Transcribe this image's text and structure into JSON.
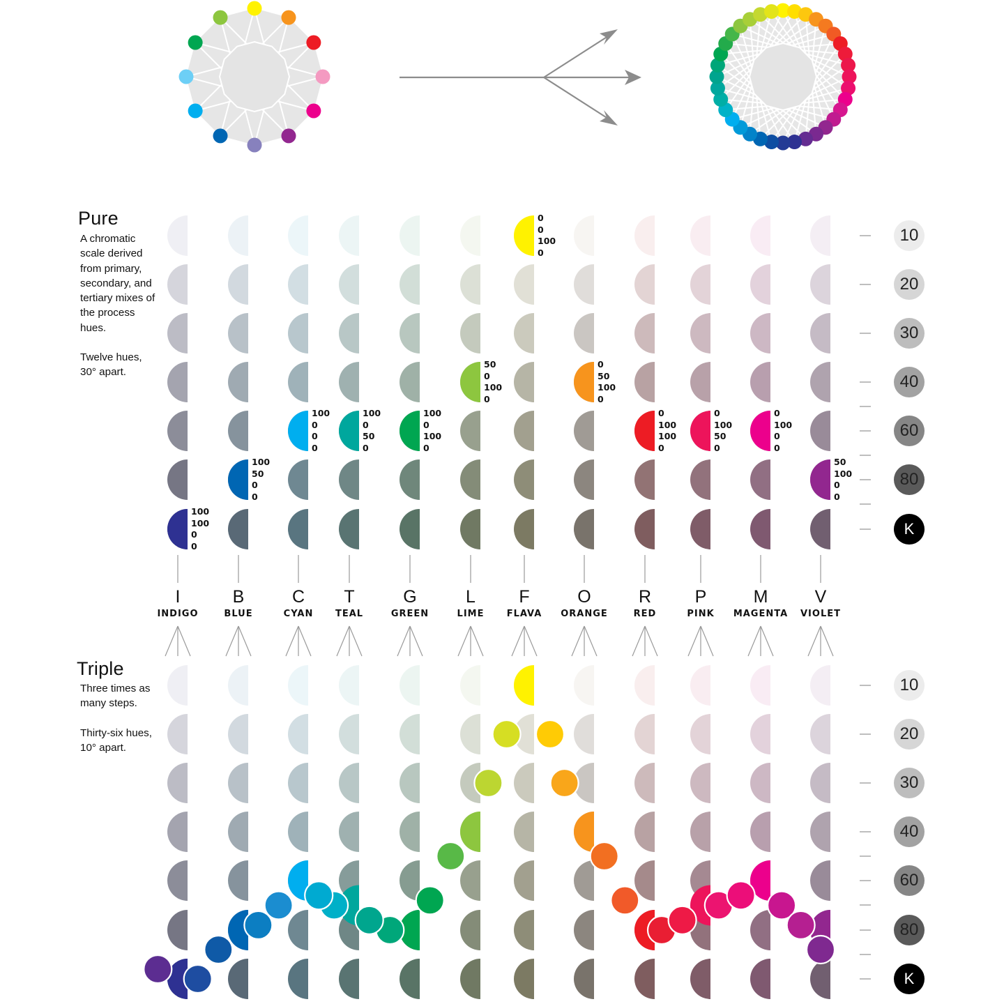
{
  "sections": {
    "pure": {
      "title": "Pure",
      "description": "A chromatic scale derived from primary, secondary, and tertiary mixes of the process hues.",
      "note": "Twelve hues, 30° apart."
    },
    "triple": {
      "title": "Triple",
      "description": "Three times as many steps.",
      "note": "Thirty-six hues, 10° apart."
    }
  },
  "levels": [
    "10",
    "20",
    "30",
    "40",
    "60",
    "80",
    "K"
  ],
  "level_colors": [
    "#ececec",
    "#d6d6d6",
    "#bdbdbd",
    "#a2a2a2",
    "#868686",
    "#5a5a5a",
    "#000000"
  ],
  "hues": [
    {
      "letter": "I",
      "name": "INDIGO",
      "color": "#2e3192",
      "tint": "#2e3192",
      "level": "K",
      "cmyk": [
        "100",
        "100",
        "0",
        "0"
      ]
    },
    {
      "letter": "B",
      "name": "BLUE",
      "color": "#0066b3",
      "tint": "#0066b3",
      "level": "80",
      "cmyk": [
        "100",
        "50",
        "0",
        "0"
      ]
    },
    {
      "letter": "C",
      "name": "CYAN",
      "color": "#00aeef",
      "tint": "#00aeef",
      "level": "60",
      "cmyk": [
        "100",
        "0",
        "0",
        "0"
      ]
    },
    {
      "letter": "T",
      "name": "TEAL",
      "color": "#00a79d",
      "tint": "#00a79d",
      "level": "60",
      "cmyk": [
        "100",
        "0",
        "50",
        "0"
      ]
    },
    {
      "letter": "G",
      "name": "GREEN",
      "color": "#00a651",
      "tint": "#00a651",
      "level": "60",
      "cmyk": [
        "100",
        "0",
        "100",
        "0"
      ]
    },
    {
      "letter": "L",
      "name": "LIME",
      "color": "#8dc63f",
      "tint": "#8dc63f",
      "level": "40",
      "cmyk": [
        "50",
        "0",
        "100",
        "0"
      ]
    },
    {
      "letter": "F",
      "name": "FLAVA",
      "color": "#fff200",
      "tint": "#d8cc40",
      "level": "10",
      "cmyk": [
        "0",
        "0",
        "100",
        "0"
      ]
    },
    {
      "letter": "O",
      "name": "ORANGE",
      "color": "#f7941d",
      "tint": "#c8a070",
      "level": "40",
      "cmyk": [
        "0",
        "50",
        "100",
        "0"
      ]
    },
    {
      "letter": "R",
      "name": "RED",
      "color": "#ed1c24",
      "tint": "#ed1c24",
      "level": "60",
      "cmyk": [
        "0",
        "100",
        "100",
        "0"
      ]
    },
    {
      "letter": "P",
      "name": "PINK",
      "color": "#ed145b",
      "tint": "#ed145b",
      "level": "60",
      "cmyk": [
        "0",
        "100",
        "50",
        "0"
      ]
    },
    {
      "letter": "M",
      "name": "MAGENTA",
      "color": "#ec008c",
      "tint": "#ec008c",
      "level": "60",
      "cmyk": [
        "0",
        "100",
        "0",
        "0"
      ]
    },
    {
      "letter": "V",
      "name": "VIOLET",
      "color": "#92278f",
      "tint": "#92278f",
      "level": "80",
      "cmyk": [
        "50",
        "100",
        "0",
        "0"
      ]
    }
  ],
  "wheel12": {
    "colors": [
      "#fff200",
      "#f7941d",
      "#ed1c24",
      "#f49ac1",
      "#ec008c",
      "#92278f",
      "#8781bd",
      "#0066b3",
      "#00aeef",
      "#6dcff6",
      "#00a651",
      "#8dc63f"
    ]
  },
  "wheel36": {
    "colors": [
      "#fff200",
      "#ffde00",
      "#fdc70f",
      "#f7941d",
      "#f47a20",
      "#f15a24",
      "#ed1c24",
      "#ee1b3a",
      "#ec174b",
      "#ed145b",
      "#ec0f6e",
      "#ec008c",
      "#d6168f",
      "#c01b90",
      "#92278f",
      "#7a2990",
      "#642c91",
      "#2e3192",
      "#233b95",
      "#0e4ea2",
      "#0066b3",
      "#0283c9",
      "#009ad9",
      "#00aeef",
      "#00b2c7",
      "#00aea6",
      "#00a79d",
      "#00a48e",
      "#00a679",
      "#00a651",
      "#23ab4b",
      "#45b649",
      "#8dc63f",
      "#a8cf38",
      "#c4d830",
      "#e3e41a"
    ]
  },
  "triple_path": [
    {
      "col": 6,
      "level": 0,
      "color": "#fff200",
      "half": true
    },
    {
      "col": 5.67,
      "level": 1,
      "color": "#d6de23"
    },
    {
      "col": 6.43,
      "level": 1,
      "color": "#ffcb05"
    },
    {
      "col": 5.33,
      "level": 2,
      "color": "#bcd631"
    },
    {
      "col": 6.67,
      "level": 2,
      "color": "#f9a61a"
    },
    {
      "col": 5,
      "level": 3,
      "color": "#8dc63f",
      "half": true
    },
    {
      "col": 7,
      "level": 3,
      "color": "#f7941d",
      "half": true
    },
    {
      "col": 4.67,
      "level": 3.5,
      "color": "#58b947"
    },
    {
      "col": 7.33,
      "level": 3.5,
      "color": "#f26f21"
    },
    {
      "col": 4.33,
      "level": 4.4,
      "color": "#00a651"
    },
    {
      "col": 7.67,
      "level": 4.4,
      "color": "#f15a29"
    },
    {
      "col": 4,
      "level": 5,
      "color": "#00a651",
      "half": true
    },
    {
      "col": 8,
      "level": 5,
      "color": "#ed1c24",
      "half": true
    },
    {
      "col": 3.67,
      "level": 5,
      "color": "#00a77a"
    },
    {
      "col": 8.3,
      "level": 5,
      "color": "#e91e33"
    },
    {
      "col": 3.33,
      "level": 4.8,
      "color": "#00a68e"
    },
    {
      "col": 8.67,
      "level": 4.8,
      "color": "#ee1a46"
    },
    {
      "col": 3,
      "level": 4.5,
      "color": "#00a79d",
      "half": true
    },
    {
      "col": 9,
      "level": 4.5,
      "color": "#ed145b",
      "half": true
    },
    {
      "col": 2.7,
      "level": 4.5,
      "color": "#00b0c8"
    },
    {
      "col": 9.3,
      "level": 4.5,
      "color": "#ec1470"
    },
    {
      "col": 2.4,
      "level": 4.3,
      "color": "#00aad1"
    },
    {
      "col": 9.67,
      "level": 4.3,
      "color": "#ec0e79"
    },
    {
      "col": 2,
      "level": 4,
      "color": "#00aeef",
      "half": true
    },
    {
      "col": 10,
      "level": 4,
      "color": "#ec008c",
      "half": true
    },
    {
      "col": 1.67,
      "level": 4.5,
      "color": "#1b8dd0"
    },
    {
      "col": 10.35,
      "level": 4.5,
      "color": "#c8168f"
    },
    {
      "col": 1.33,
      "level": 4.9,
      "color": "#0c7ec2"
    },
    {
      "col": 10.67,
      "level": 4.9,
      "color": "#b51f91"
    },
    {
      "col": 1,
      "level": 5,
      "color": "#0066b3",
      "half": true
    },
    {
      "col": 11,
      "level": 5,
      "color": "#92278f",
      "half": true
    },
    {
      "col": 0.67,
      "level": 5.4,
      "color": "#0f5aa7"
    },
    {
      "col": 11.33,
      "level": 5.4,
      "color": "#7f2990"
    },
    {
      "col": 0.33,
      "level": 6,
      "color": "#1e4da1"
    },
    {
      "col": -0.33,
      "level": 5.8,
      "color": "#5c2d91"
    },
    {
      "col": 0,
      "level": 6.5,
      "color": "#2e3192",
      "half": true
    }
  ]
}
